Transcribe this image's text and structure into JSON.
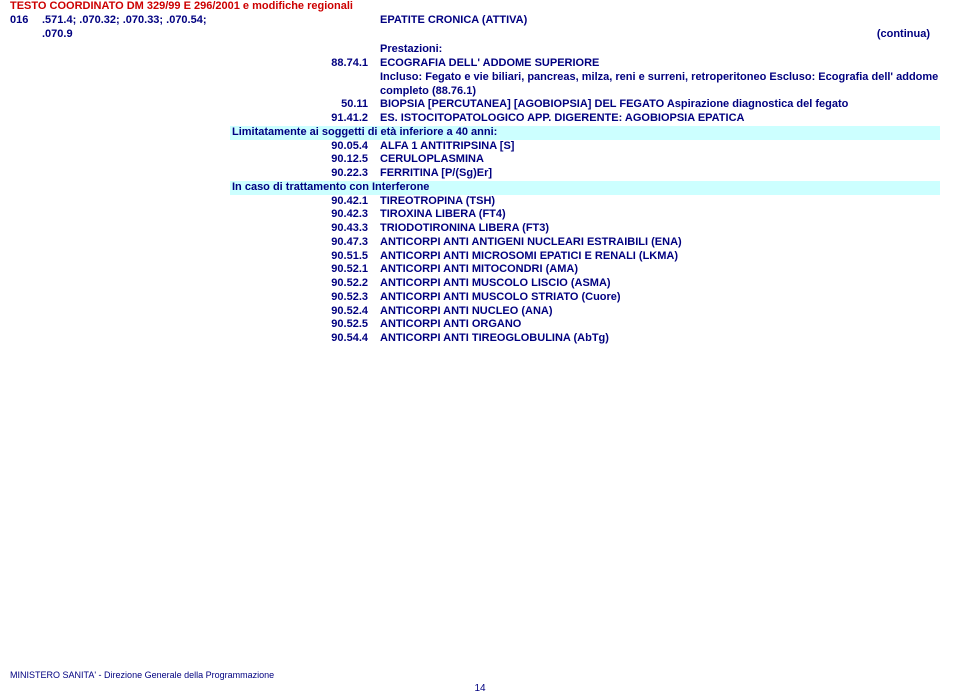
{
  "doc_title": "TESTO COORDINATO DM 329/99 E 296/2001 e modifiche regionali",
  "header": {
    "main_code": "016",
    "sub_codes_line1": ".571.4;  .070.32; .070.33;  .070.54;",
    "sub_codes_line2": ".070.9",
    "disease": "EPATITE CRONICA (ATTIVA)",
    "continua": "(continua)"
  },
  "prestazioni_label": "Prestazioni:",
  "items_block1": [
    {
      "code": "88.74.1",
      "desc": "ECOGRAFIA DELL' ADDOME SUPERIORE"
    },
    {
      "code": "",
      "desc": "Incluso: Fegato e vie biliari, pancreas, milza, reni e surreni, retroperitoneo  Escluso: Ecografia dell' addome completo (88.76.1)"
    },
    {
      "code": "50.11",
      "desc": "BIOPSIA [PERCUTANEA] [AGOBIOPSIA]  DEL FEGATO    Aspirazione diagnostica del fegato"
    },
    {
      "code": "91.41.2",
      "desc": "ES. ISTOCITOPATOLOGICO APP. DIGERENTE: AGOBIOPSIA EPATICA"
    }
  ],
  "highlight1": "Limitatamente ai soggetti di età inferiore a 40 anni:",
  "items_block2": [
    {
      "code": "90.05.4",
      "desc": "ALFA 1 ANTITRIPSINA [S]"
    },
    {
      "code": "90.12.5",
      "desc": "CERULOPLASMINA"
    },
    {
      "code": "90.22.3",
      "desc": "FERRITINA [P/(Sg)Er]"
    }
  ],
  "highlight2": "In caso di trattamento con Interferone",
  "items_block3": [
    {
      "code": "90.42.1",
      "desc": "TIREOTROPINA (TSH)"
    },
    {
      "code": "90.42.3",
      "desc": "TIROXINA LIBERA (FT4)"
    },
    {
      "code": "90.43.3",
      "desc": "TRIODOTIRONINA LIBERA (FT3)"
    },
    {
      "code": "90.47.3",
      "desc": "ANTICORPI ANTI ANTIGENI NUCLEARI ESTRAIBILI (ENA)"
    },
    {
      "code": "90.51.5",
      "desc": "ANTICORPI ANTI MICROSOMI EPATICI E RENALI (LKMA)"
    },
    {
      "code": "90.52.1",
      "desc": "ANTICORPI ANTI MITOCONDRI (AMA)"
    },
    {
      "code": "90.52.2",
      "desc": "ANTICORPI ANTI MUSCOLO LISCIO (ASMA)"
    },
    {
      "code": "90.52.3",
      "desc": "ANTICORPI ANTI MUSCOLO STRIATO (Cuore)"
    },
    {
      "code": "90.52.4",
      "desc": "ANTICORPI ANTI NUCLEO (ANA)"
    },
    {
      "code": "90.52.5",
      "desc": "ANTICORPI ANTI ORGANO"
    },
    {
      "code": "90.54.4",
      "desc": "ANTICORPI ANTI TIREOGLOBULINA (AbTg)"
    }
  ],
  "footer": "MINISTERO SANITA' - Direzione Generale della Programmazione",
  "page_number": "14",
  "colors": {
    "text": "#000080",
    "title": "#cc0000",
    "highlight_bg": "#ccffff",
    "background": "#ffffff"
  }
}
